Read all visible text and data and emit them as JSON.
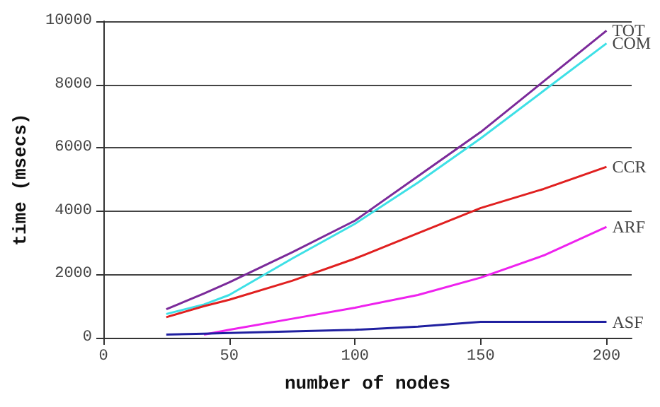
{
  "chart_data": {
    "type": "line",
    "xlabel": "number of nodes",
    "ylabel": "time (msecs)",
    "xlim": [
      0,
      210
    ],
    "xticks": [
      0,
      50,
      100,
      150,
      200
    ],
    "ylim": [
      0,
      10000
    ],
    "yticks": [
      0,
      2000,
      4000,
      6000,
      8000,
      10000
    ],
    "grid": "y",
    "marker": "none",
    "line_style": "solid",
    "legend": false,
    "x": [
      25,
      40,
      50,
      75,
      100,
      125,
      150,
      175,
      200
    ],
    "series": [
      {
        "name": "TOT",
        "color": "#7b2a9a",
        "values": [
          900,
          1400,
          1750,
          2700,
          3700,
          5100,
          6500,
          8100,
          9700
        ]
      },
      {
        "name": "COM",
        "color": "#3ee0e6",
        "values": [
          750,
          1050,
          1350,
          2500,
          3600,
          4900,
          6300,
          7800,
          9300
        ]
      },
      {
        "name": "CCR",
        "color": "#e02020",
        "values": [
          650,
          1000,
          1200,
          1800,
          2500,
          3300,
          4100,
          4700,
          5400
        ]
      },
      {
        "name": "ARF",
        "color": "#ee22ee",
        "values": [
          null,
          100,
          250,
          600,
          950,
          1350,
          1900,
          2600,
          3500
        ]
      },
      {
        "name": "ASF",
        "color": "#2020a0",
        "values": [
          100,
          130,
          150,
          200,
          250,
          350,
          500,
          500,
          500
        ]
      }
    ]
  }
}
